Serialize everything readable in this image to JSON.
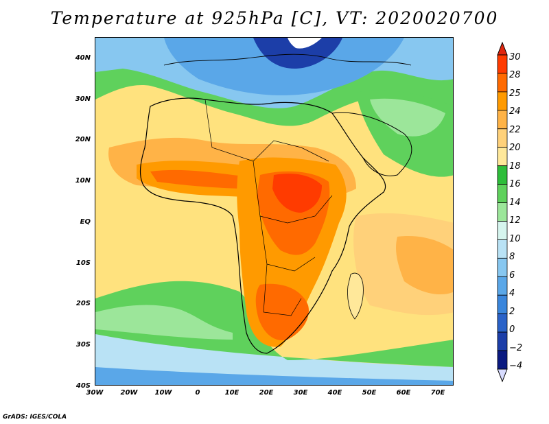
{
  "title": "Temperature at 925hPa [C], VT: 2020020700",
  "credit": "GrADS: IGES/COLA",
  "map": {
    "lat_labels": [
      "40N",
      "30N",
      "20N",
      "10N",
      "EQ",
      "10S",
      "20S",
      "30S",
      "40S"
    ],
    "lon_labels": [
      "30W",
      "20W",
      "10W",
      "0",
      "10E",
      "20E",
      "30E",
      "40E",
      "50E",
      "60E",
      "70E"
    ]
  },
  "colorbar": {
    "levels": [
      "30",
      "28",
      "25",
      "24",
      "22",
      "20",
      "18",
      "16",
      "14",
      "12",
      "10",
      "8",
      "6",
      "4",
      "2",
      "0",
      "−2",
      "−4"
    ],
    "colors": [
      "#ff3b00",
      "#ff6a00",
      "#ff9a00",
      "#ffb347",
      "#ffd17a",
      "#ffe89a",
      "#2ebd3a",
      "#5fd15c",
      "#9ce69a",
      "#d6f5ee",
      "#b9e2f5",
      "#87c7f0",
      "#5aa7e8",
      "#3a86dc",
      "#2a62c8",
      "#1c3ea8",
      "#0a1a80"
    ],
    "top_color": "#e0260e",
    "bottom_color": "#d8dcff"
  }
}
